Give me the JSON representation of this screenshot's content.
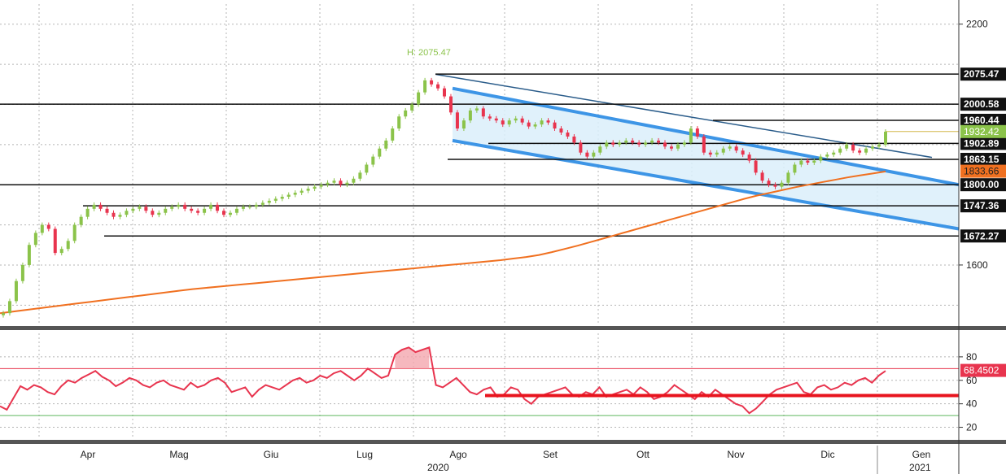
{
  "chart_data": [
    {
      "type": "candlestick",
      "title": "",
      "x_labels": [
        "Apr",
        "Mag",
        "Giu",
        "Lug",
        "Ago",
        "Set",
        "Ott",
        "Nov",
        "Dic",
        "Gen"
      ],
      "year_labels": [
        "2020",
        "2021"
      ],
      "y_ticks": [
        "2200",
        "1600"
      ],
      "ylim": [
        1450,
        2250
      ],
      "high_annotation": "H: 2075.47",
      "horizontal_levels": [
        {
          "value": 2075.47,
          "label": "2075.47"
        },
        {
          "value": 2000.58,
          "label": "2000.58"
        },
        {
          "value": 1960.44,
          "label": "1960.44"
        },
        {
          "value": 1902.89,
          "label": "1902.89"
        },
        {
          "value": 1863.15,
          "label": "1863.15"
        },
        {
          "value": 1800.0,
          "label": "1800.00"
        },
        {
          "value": 1747.36,
          "label": "1747.36"
        },
        {
          "value": 1672.27,
          "label": "1672.27"
        }
      ],
      "last_price": {
        "value": 1932.42,
        "label": "1932.42"
      },
      "moving_average_last": {
        "value": 1833.66,
        "label": "1833.66"
      },
      "series": [
        {
          "values": [
            1480,
            1510,
            1560,
            1600,
            1650,
            1680,
            1700,
            1690,
            1630,
            1640,
            1660,
            1700,
            1720,
            1740,
            1750,
            1740,
            1730,
            1720,
            1725,
            1735,
            1740,
            1745,
            1735,
            1725,
            1730,
            1740,
            1745,
            1750,
            1740,
            1735,
            1730,
            1740,
            1750,
            1735,
            1725,
            1730,
            1740,
            1745,
            1745,
            1750,
            1755,
            1760,
            1765,
            1770,
            1775,
            1780,
            1785,
            1790,
            1795,
            1800,
            1805,
            1810,
            1800,
            1805,
            1815,
            1830,
            1850,
            1870,
            1890,
            1910,
            1940,
            1970,
            1985,
            2000,
            2030,
            2060,
            2050,
            2040,
            2020,
            1980,
            1940,
            1960,
            1985,
            1990,
            1970,
            1965,
            1960,
            1950,
            1960,
            1965,
            1955,
            1945,
            1950,
            1960,
            1955,
            1940,
            1930,
            1920,
            1905,
            1880,
            1870,
            1880,
            1895,
            1905,
            1900,
            1905,
            1910,
            1905,
            1900,
            1905,
            1910,
            1905,
            1895,
            1890,
            1900,
            1905,
            1940,
            1920,
            1880,
            1875,
            1880,
            1890,
            1895,
            1885,
            1875,
            1860,
            1830,
            1810,
            1800,
            1795,
            1805,
            1830,
            1850,
            1860,
            1855,
            1860,
            1870,
            1875,
            1880,
            1890,
            1900,
            1885,
            1880,
            1890,
            1895,
            1900,
            1932
          ]
        },
        {
          "name": "",
          "values": [
            1480,
            1484,
            1488,
            1492,
            1496,
            1500,
            1504,
            1508,
            1512,
            1516,
            1520,
            1524,
            1528,
            1532,
            1536,
            1540,
            1543,
            1546,
            1549,
            1552,
            1555,
            1558,
            1561,
            1564,
            1567,
            1570,
            1573,
            1576,
            1579,
            1582,
            1585,
            1588,
            1591,
            1594,
            1597,
            1600,
            1603,
            1606,
            1609,
            1612,
            1616,
            1620,
            1625,
            1632,
            1640,
            1648,
            1657,
            1666,
            1675,
            1684,
            1693,
            1702,
            1711,
            1720,
            1729,
            1738,
            1747,
            1756,
            1765,
            1773,
            1780,
            1787,
            1794,
            1800,
            1806,
            1812,
            1818,
            1823,
            1828,
            1833
          ]
        }
      ],
      "channel": {
        "upper_start": 2040,
        "upper_end": 1800,
        "lower_start": 1910,
        "lower_end": 1690
      },
      "trendline": {
        "start": 2075,
        "end": 1868
      }
    },
    {
      "type": "line",
      "title": "",
      "y_ticks": [
        "80",
        "60",
        "40",
        "20"
      ],
      "ylim": [
        10,
        100
      ],
      "reference_levels": [
        70,
        30
      ],
      "support_level": 47,
      "last_value": {
        "value": 68.4502,
        "label": "68.4502"
      },
      "series": [
        {
          "name": "",
          "values": [
            38,
            35,
            45,
            55,
            52,
            56,
            54,
            50,
            48,
            55,
            60,
            58,
            62,
            65,
            68,
            63,
            60,
            55,
            58,
            62,
            60,
            56,
            54,
            58,
            60,
            56,
            54,
            52,
            58,
            54,
            56,
            60,
            62,
            58,
            50,
            52,
            54,
            46,
            52,
            56,
            54,
            52,
            56,
            60,
            62,
            58,
            60,
            64,
            62,
            66,
            68,
            64,
            60,
            64,
            70,
            66,
            62,
            64,
            82,
            86,
            88,
            84,
            86,
            88,
            56,
            54,
            58,
            62,
            56,
            50,
            48,
            52,
            54,
            46,
            48,
            54,
            52,
            44,
            40,
            46,
            48,
            50,
            52,
            54,
            48,
            46,
            50,
            48,
            54,
            46,
            48,
            50,
            52,
            48,
            54,
            50,
            44,
            46,
            50,
            56,
            52,
            48,
            44,
            50,
            46,
            52,
            48,
            44,
            40,
            38,
            32,
            36,
            42,
            48,
            52,
            54,
            56,
            58,
            50,
            48,
            54,
            56,
            52,
            54,
            58,
            56,
            60,
            62,
            58,
            64,
            68
          ]
        }
      ]
    }
  ]
}
